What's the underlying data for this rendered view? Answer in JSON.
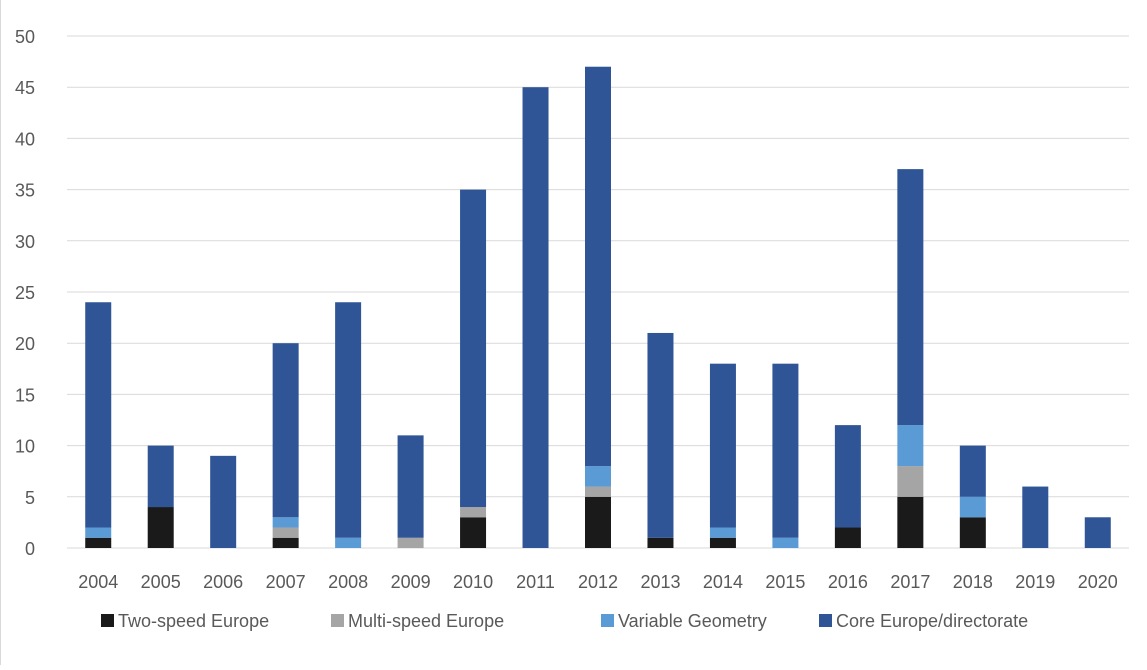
{
  "chart_data": {
    "type": "bar",
    "stacked": true,
    "title": "",
    "xlabel": "",
    "ylabel": "",
    "categories": [
      "2004",
      "2005",
      "2006",
      "2007",
      "2008",
      "2009",
      "2010",
      "2011",
      "2012",
      "2013",
      "2014",
      "2015",
      "2016",
      "2017",
      "2018",
      "2019",
      "2020"
    ],
    "ylim": [
      0,
      50
    ],
    "yticks": [
      0,
      5,
      10,
      15,
      20,
      25,
      30,
      35,
      40,
      45,
      50
    ],
    "grid": "horizontal",
    "legend_position": "bottom",
    "series": [
      {
        "name": "Two-speed Europe",
        "color": "#1a1a1a",
        "values": [
          1,
          4,
          0,
          1,
          0,
          0,
          3,
          0,
          5,
          1,
          1,
          0,
          2,
          5,
          3,
          0,
          0
        ]
      },
      {
        "name": "Multi-speed Europe",
        "color": "#a5a5a5",
        "values": [
          0,
          0,
          0,
          1,
          0,
          1,
          1,
          0,
          1,
          0,
          0,
          0,
          0,
          3,
          0,
          0,
          0
        ]
      },
      {
        "name": "Variable Geometry",
        "color": "#5b9bd5",
        "values": [
          1,
          0,
          0,
          1,
          1,
          0,
          0,
          0,
          2,
          0,
          1,
          1,
          0,
          4,
          2,
          0,
          0
        ]
      },
      {
        "name": "Core Europe/directorate",
        "color": "#2f5597",
        "values": [
          22,
          6,
          9,
          17,
          23,
          10,
          31,
          45,
          39,
          20,
          16,
          17,
          10,
          25,
          5,
          6,
          3
        ]
      }
    ]
  }
}
